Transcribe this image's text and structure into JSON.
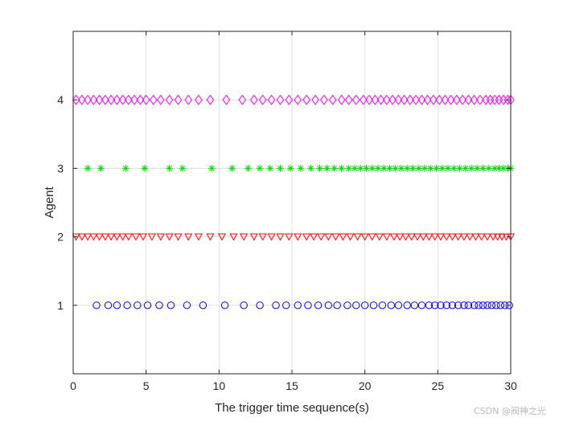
{
  "chart_data": {
    "type": "scatter",
    "title": "",
    "xlabel": "The trigger time sequence(s)",
    "ylabel": "Agent",
    "xlim": [
      0,
      30
    ],
    "ylim": [
      0,
      5
    ],
    "xticks": [
      0,
      5,
      10,
      15,
      20,
      25,
      30
    ],
    "yticks": [
      1,
      2,
      3,
      4
    ],
    "grid": true,
    "series": [
      {
        "agent": 1,
        "marker": "circle",
        "color": "#0000ff",
        "x": [
          1.6,
          2.4,
          3.0,
          3.7,
          4.4,
          5.1,
          5.9,
          6.7,
          7.8,
          8.9,
          10.4,
          11.7,
          12.8,
          13.9,
          14.6,
          15.4,
          16.1,
          16.8,
          17.5,
          18.1,
          18.8,
          19.4,
          20.0,
          20.6,
          21.2,
          21.8,
          22.3,
          22.9,
          23.4,
          23.9,
          24.4,
          24.8,
          25.2,
          25.6,
          26.0,
          26.4,
          26.8,
          27.1,
          27.5,
          27.8,
          28.1,
          28.4,
          28.7,
          29.0,
          29.3,
          29.6,
          29.9
        ]
      },
      {
        "agent": 2,
        "marker": "triangle-down",
        "color": "#ff0000",
        "x": [
          0.2,
          0.6,
          1.0,
          1.4,
          1.8,
          2.2,
          2.6,
          3.0,
          3.4,
          3.8,
          4.3,
          4.8,
          5.4,
          6.0,
          6.6,
          7.2,
          7.9,
          8.6,
          9.4,
          10.2,
          11.0,
          11.7,
          12.4,
          13.0,
          13.6,
          14.2,
          14.8,
          15.4,
          16.0,
          16.5,
          17.0,
          17.5,
          18.0,
          18.5,
          19.0,
          19.5,
          20.0,
          20.5,
          21.0,
          21.5,
          22.0,
          22.4,
          22.8,
          23.2,
          23.6,
          24.0,
          24.4,
          24.8,
          25.2,
          25.6,
          26.0,
          26.4,
          26.8,
          27.2,
          27.6,
          28.0,
          28.4,
          28.8,
          29.1,
          29.4,
          29.7,
          30.0
        ]
      },
      {
        "agent": 3,
        "marker": "asterisk",
        "color": "#00dd00",
        "x": [
          1.0,
          1.9,
          3.6,
          4.9,
          6.6,
          7.5,
          9.5,
          10.9,
          12.0,
          12.8,
          13.5,
          14.2,
          14.9,
          15.6,
          16.3,
          16.9,
          17.4,
          17.9,
          18.4,
          18.9,
          19.3,
          19.7,
          20.1,
          20.5,
          20.9,
          21.3,
          21.7,
          22.1,
          22.5,
          22.9,
          23.3,
          23.7,
          24.1,
          24.5,
          24.9,
          25.3,
          25.7,
          26.1,
          26.5,
          26.9,
          27.3,
          27.7,
          28.1,
          28.5,
          28.9,
          29.2,
          29.5,
          29.8,
          30.0
        ]
      },
      {
        "agent": 4,
        "marker": "diamond",
        "color": "#ff00ff",
        "x": [
          0.2,
          0.6,
          1.0,
          1.4,
          1.8,
          2.2,
          2.6,
          3.0,
          3.4,
          3.8,
          4.2,
          4.6,
          5.0,
          5.5,
          6.0,
          6.6,
          7.2,
          7.9,
          8.6,
          9.4,
          10.5,
          11.6,
          12.4,
          13.0,
          13.6,
          14.2,
          14.8,
          15.4,
          16.0,
          16.6,
          17.2,
          17.8,
          18.4,
          18.9,
          19.4,
          19.9,
          20.3,
          20.7,
          21.1,
          21.5,
          21.9,
          22.3,
          22.7,
          23.1,
          23.5,
          23.9,
          24.3,
          24.7,
          25.1,
          25.5,
          25.9,
          26.3,
          26.7,
          27.1,
          27.5,
          27.9,
          28.3,
          28.6,
          28.9,
          29.2,
          29.5,
          29.8,
          30.0
        ]
      }
    ]
  },
  "watermark": "CSDN @阀神之光"
}
